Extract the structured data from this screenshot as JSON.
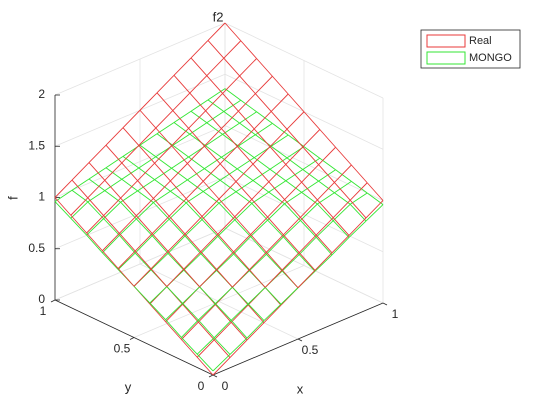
{
  "chart_data": {
    "type": "mesh3d",
    "title": "f2",
    "xlabel": "x",
    "ylabel": "y",
    "zlabel": "f",
    "x": [
      0,
      0.1,
      0.2,
      0.3,
      0.4,
      0.5,
      0.6,
      0.7,
      0.8,
      0.9,
      1
    ],
    "y": [
      0,
      0.1,
      0.2,
      0.3,
      0.4,
      0.5,
      0.6,
      0.7,
      0.8,
      0.9,
      1
    ],
    "xlim": [
      0,
      1
    ],
    "ylim": [
      0,
      1
    ],
    "zlim": [
      0,
      2
    ],
    "xticks": [
      0,
      0.5,
      1
    ],
    "yticks": [
      0,
      0.5,
      1
    ],
    "zticks": [
      0,
      0.5,
      1,
      1.5,
      2
    ],
    "grid": true,
    "legend_position": "northeastoutside",
    "series": [
      {
        "name": "Real",
        "color": "#e83a3a",
        "z": [
          [
            0,
            0.1,
            0.2,
            0.3,
            0.4,
            0.5,
            0.6,
            0.7,
            0.8,
            0.9,
            1
          ],
          [
            0.1,
            0.2,
            0.3,
            0.4,
            0.5,
            0.6,
            0.7,
            0.8,
            0.9,
            1,
            1.1
          ],
          [
            0.2,
            0.3,
            0.4,
            0.5,
            0.6,
            0.7,
            0.8,
            0.9,
            1,
            1.1,
            1.2
          ],
          [
            0.3,
            0.4,
            0.5,
            0.6,
            0.7,
            0.8,
            0.9,
            1,
            1.1,
            1.2,
            1.3
          ],
          [
            0.4,
            0.5,
            0.6,
            0.7,
            0.8,
            0.9,
            1,
            1.1,
            1.2,
            1.3,
            1.4
          ],
          [
            0.5,
            0.6,
            0.7,
            0.8,
            0.9,
            1,
            1.1,
            1.2,
            1.3,
            1.4,
            1.5
          ],
          [
            0.6,
            0.7,
            0.8,
            0.9,
            1,
            1.1,
            1.2,
            1.3,
            1.4,
            1.5,
            1.6
          ],
          [
            0.7,
            0.8,
            0.9,
            1,
            1.1,
            1.2,
            1.3,
            1.4,
            1.5,
            1.6,
            1.7
          ],
          [
            0.8,
            0.9,
            1,
            1.1,
            1.2,
            1.3,
            1.4,
            1.5,
            1.6,
            1.7,
            1.8
          ],
          [
            0.9,
            1,
            1.1,
            1.2,
            1.3,
            1.4,
            1.5,
            1.6,
            1.7,
            1.8,
            1.9
          ],
          [
            1,
            1.1,
            1.2,
            1.3,
            1.4,
            1.5,
            1.6,
            1.7,
            1.8,
            1.9,
            2
          ]
        ]
      },
      {
        "name": "MONGO",
        "color": "#33e633",
        "z": [
          [
            0.04,
            0.13,
            0.22,
            0.32,
            0.41,
            0.5,
            0.59,
            0.68,
            0.78,
            0.87,
            0.96
          ],
          [
            0.13,
            0.22,
            0.32,
            0.41,
            0.5,
            0.59,
            0.68,
            0.78,
            0.87,
            0.96,
            1.0
          ],
          [
            0.22,
            0.32,
            0.41,
            0.5,
            0.59,
            0.68,
            0.78,
            0.87,
            0.96,
            1.0,
            1.04
          ],
          [
            0.32,
            0.41,
            0.5,
            0.59,
            0.68,
            0.78,
            0.87,
            0.96,
            1.0,
            1.04,
            1.08
          ],
          [
            0.41,
            0.5,
            0.59,
            0.68,
            0.78,
            0.87,
            0.96,
            1.0,
            1.04,
            1.08,
            1.12
          ],
          [
            0.5,
            0.59,
            0.68,
            0.78,
            0.87,
            0.96,
            1.0,
            1.04,
            1.08,
            1.12,
            1.16
          ],
          [
            0.59,
            0.68,
            0.78,
            0.87,
            0.96,
            1.0,
            1.04,
            1.08,
            1.12,
            1.16,
            1.2
          ],
          [
            0.68,
            0.78,
            0.87,
            0.96,
            1.0,
            1.04,
            1.08,
            1.12,
            1.16,
            1.2,
            1.24
          ],
          [
            0.78,
            0.87,
            0.96,
            1.0,
            1.04,
            1.08,
            1.12,
            1.16,
            1.2,
            1.24,
            1.28
          ],
          [
            0.87,
            0.96,
            1.0,
            1.04,
            1.08,
            1.12,
            1.16,
            1.2,
            1.24,
            1.28,
            1.32
          ],
          [
            0.96,
            1.0,
            1.04,
            1.08,
            1.12,
            1.16,
            1.2,
            1.24,
            1.28,
            1.32,
            1.36
          ]
        ]
      }
    ]
  }
}
